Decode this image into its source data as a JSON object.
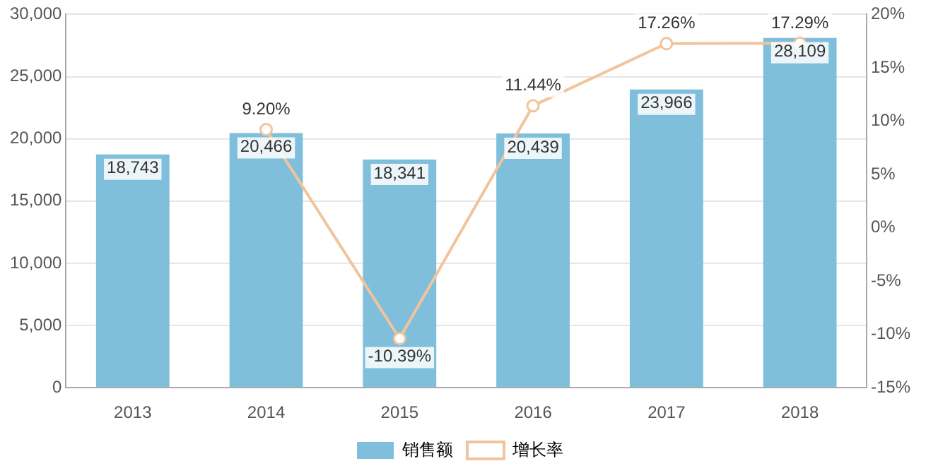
{
  "chart_data": {
    "type": "bar",
    "categories": [
      "2013",
      "2014",
      "2015",
      "2016",
      "2017",
      "2018"
    ],
    "series": [
      {
        "name": "销售额",
        "color": "#7fbfdc",
        "values": [
          18743,
          20466,
          18341,
          20439,
          23966,
          28109
        ],
        "value_labels": [
          "18,743",
          "20,466",
          "18,341",
          "20,439",
          "23,966",
          "28,109"
        ]
      },
      {
        "name": "增长率",
        "type": "line",
        "axis": "y2",
        "color": "#f2c49c",
        "marker": "circle",
        "values": [
          null,
          9.2,
          -10.39,
          11.44,
          17.26,
          17.29
        ],
        "value_labels": [
          null,
          "9.20%",
          "-10.39%",
          "11.44%",
          "17.26%",
          "17.29%"
        ]
      }
    ],
    "ylim": [
      0,
      30000
    ],
    "yticks": [
      0,
      {
        "value": 5000,
        "label": "5,000"
      },
      {
        "value": 10000,
        "label": "10,000"
      },
      {
        "value": 15000,
        "label": "15,000"
      },
      {
        "value": 20000,
        "label": "20,000"
      },
      {
        "value": 25000,
        "label": "25,000"
      },
      {
        "value": 30000,
        "label": "30,000"
      }
    ],
    "y2lim": [
      -15,
      20
    ],
    "y2ticks": [
      {
        "value": -15,
        "label": "-15%"
      },
      {
        "value": -10,
        "label": "-10%"
      },
      {
        "value": -5,
        "label": "-5%"
      },
      {
        "value": 0,
        "label": "0%"
      },
      {
        "value": 5,
        "label": "5%"
      },
      {
        "value": 10,
        "label": "10%"
      },
      {
        "value": 15,
        "label": "15%"
      },
      {
        "value": 20,
        "label": "20%"
      }
    ],
    "grid": "y",
    "legend": "bottom"
  }
}
